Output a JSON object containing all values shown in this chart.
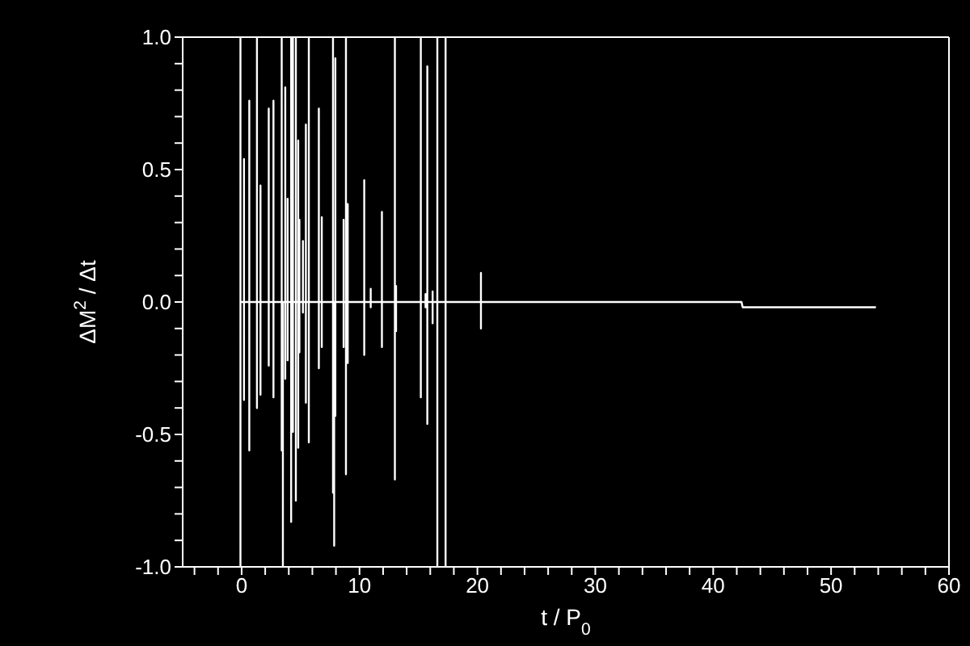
{
  "chart_data": {
    "type": "line",
    "xlabel": "t / P$_{0}$",
    "ylabel": "ΔM$^{2}$ / Δt",
    "x": [
      -0.1,
      -0.1,
      -0.1,
      -0.1,
      0.2,
      0.2,
      0.2,
      0.2,
      0.65,
      0.65,
      0.65,
      0.65,
      1.3,
      1.3,
      1.3,
      1.3,
      1.6,
      1.6,
      1.6,
      1.6,
      2.3,
      2.3,
      2.3,
      2.3,
      2.7,
      2.7,
      2.7,
      2.7,
      3.4,
      3.4,
      3.4,
      3.4,
      3.5,
      3.5,
      3.5,
      3.5,
      3.7,
      3.7,
      3.7,
      3.7,
      3.9,
      3.9,
      3.9,
      3.9,
      4.2,
      4.2,
      4.2,
      4.2,
      4.35,
      4.35,
      4.35,
      4.35,
      4.6,
      4.6,
      4.6,
      4.6,
      4.8,
      4.8,
      4.8,
      4.8,
      4.9,
      4.9,
      4.9,
      4.9,
      5.2,
      5.2,
      5.2,
      5.2,
      5.45,
      5.45,
      5.45,
      5.45,
      5.7,
      5.7,
      5.7,
      5.7,
      6.55,
      6.55,
      6.55,
      6.55,
      6.8,
      6.8,
      6.8,
      6.8,
      7.75,
      7.75,
      7.75,
      7.75,
      7.85,
      7.85,
      7.85,
      7.85,
      7.95,
      7.95,
      7.95,
      7.95,
      8.65,
      8.65,
      8.65,
      8.65,
      8.85,
      8.85,
      8.85,
      8.85,
      9.0,
      9.0,
      9.0,
      9.0,
      10.4,
      10.4,
      10.4,
      10.4,
      10.95,
      10.95,
      10.95,
      10.95,
      11.9,
      11.9,
      11.9,
      11.9,
      13.0,
      13.0,
      13.0,
      13.0,
      13.1,
      13.1,
      13.1,
      13.1,
      15.2,
      15.2,
      15.2,
      15.2,
      15.6,
      15.6,
      15.6,
      15.6,
      15.75,
      15.75,
      15.75,
      15.75,
      16.2,
      16.2,
      16.2,
      16.2,
      16.6,
      16.6,
      16.6,
      16.6,
      17.3,
      17.3,
      17.3,
      17.3,
      20.3,
      20.3,
      20.3,
      20.3,
      42.4,
      42.5,
      53.8
    ],
    "series": [
      {
        "color": "#ffffff",
        "values": [
          0,
          1.0,
          -1.0,
          0,
          0,
          0.54,
          -0.37,
          0,
          0,
          0.76,
          -0.56,
          0,
          0,
          1.0,
          -0.4,
          0,
          0,
          0.44,
          -0.35,
          0,
          0,
          0.73,
          -0.24,
          0,
          0,
          0.76,
          -0.36,
          0,
          0,
          1.0,
          -0.56,
          0,
          0,
          0,
          -1.0,
          0,
          0,
          0.81,
          -0.29,
          0,
          0,
          0.39,
          -0.22,
          0,
          0,
          1.0,
          -0.83,
          0,
          0,
          1.0,
          -0.49,
          0,
          0,
          1.0,
          -0.75,
          0,
          0,
          0.61,
          -0.55,
          0,
          0,
          0.31,
          -0.19,
          0,
          0,
          0.23,
          -0.04,
          0,
          0,
          0.67,
          -0.38,
          0,
          0,
          1.0,
          -0.53,
          0,
          0,
          0.73,
          -0.25,
          0,
          0,
          0.32,
          -0.17,
          0,
          0,
          1.0,
          -0.72,
          0,
          0,
          -0.43,
          -0.92,
          0,
          0,
          0.92,
          -0.43,
          0,
          0,
          0.31,
          -0.17,
          0,
          0,
          1.0,
          -0.65,
          0,
          0,
          0.37,
          -0.23,
          0,
          0,
          0.46,
          -0.2,
          0,
          0,
          0.05,
          -0.02,
          0,
          0,
          0.34,
          -0.17,
          0,
          0,
          1.0,
          -0.67,
          0,
          0,
          0.06,
          -0.11,
          0,
          0,
          1.0,
          -0.36,
          0,
          0,
          0.03,
          -0.02,
          0,
          0,
          0.89,
          -0.46,
          0,
          0,
          0.04,
          -0.08,
          0,
          0,
          1.0,
          -1.0,
          0,
          0,
          1.0,
          -1.0,
          0,
          0,
          0.11,
          -0.1,
          0,
          0,
          -0.02,
          -0.02
        ]
      }
    ],
    "xlim": [
      -5,
      60
    ],
    "xticks": [
      {
        "value": -4,
        "label": null
      },
      {
        "value": -2,
        "label": null
      },
      0,
      {
        "value": 2,
        "label": null
      },
      {
        "value": 4,
        "label": null
      },
      {
        "value": 6,
        "label": null
      },
      {
        "value": 8,
        "label": null
      },
      10,
      {
        "value": 12,
        "label": null
      },
      {
        "value": 14,
        "label": null
      },
      {
        "value": 16,
        "label": null
      },
      {
        "value": 18,
        "label": null
      },
      20,
      {
        "value": 22,
        "label": null
      },
      {
        "value": 24,
        "label": null
      },
      {
        "value": 26,
        "label": null
      },
      {
        "value": 28,
        "label": null
      },
      30,
      {
        "value": 32,
        "label": null
      },
      {
        "value": 34,
        "label": null
      },
      {
        "value": 36,
        "label": null
      },
      {
        "value": 38,
        "label": null
      },
      40,
      {
        "value": 42,
        "label": null
      },
      {
        "value": 44,
        "label": null
      },
      {
        "value": 46,
        "label": null
      },
      {
        "value": 48,
        "label": null
      },
      50,
      {
        "value": 52,
        "label": null
      },
      {
        "value": 54,
        "label": null
      },
      {
        "value": 56,
        "label": null
      },
      {
        "value": 58,
        "label": null
      },
      60
    ],
    "ylim": [
      -1,
      1
    ],
    "yticks": [
      {
        "value": -1,
        "label": "-1.0"
      },
      {
        "value": -0.9,
        "label": null
      },
      {
        "value": -0.8,
        "label": null
      },
      {
        "value": -0.7,
        "label": null
      },
      {
        "value": -0.6,
        "label": null
      },
      {
        "value": -0.5,
        "label": "-0.5"
      },
      {
        "value": -0.4,
        "label": null
      },
      {
        "value": -0.3,
        "label": null
      },
      {
        "value": -0.2,
        "label": null
      },
      {
        "value": -0.1,
        "label": null
      },
      {
        "value": 0,
        "label": "0.0"
      },
      {
        "value": 0.1,
        "label": null
      },
      {
        "value": 0.2,
        "label": null
      },
      {
        "value": 0.3,
        "label": null
      },
      {
        "value": 0.4,
        "label": null
      },
      {
        "value": 0.5,
        "label": "0.5"
      },
      {
        "value": 0.6,
        "label": null
      },
      {
        "value": 0.7,
        "label": null
      },
      {
        "value": 0.8,
        "label": null
      },
      {
        "value": 0.9,
        "label": null
      },
      {
        "value": 1,
        "label": "1.0"
      }
    ],
    "grid": false,
    "legend": false,
    "marker": "none",
    "line_style": "solid"
  }
}
